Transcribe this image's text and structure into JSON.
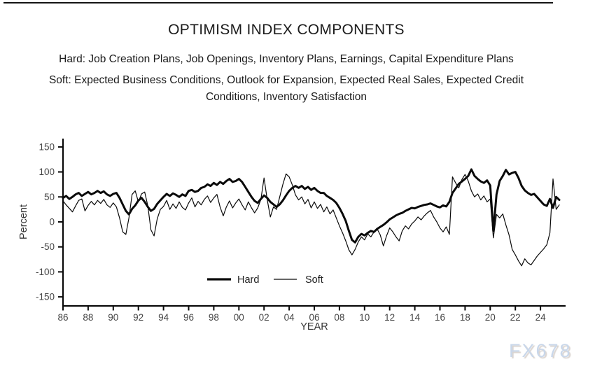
{
  "header": {
    "title": "OPTIMISM INDEX COMPONENTS",
    "hard_line": "Hard: Job Creation Plans, Job Openings, Inventory Plans, Earnings, Capital Expenditure Plans",
    "soft_line": "Soft: Expected Business Conditions, Outlook for Expansion, Expected Real Sales, Expected Credit Conditions, Inventory Satisfaction"
  },
  "watermark": {
    "text": "FX678",
    "color": "#c9d7ea"
  },
  "chart_data": {
    "type": "line",
    "title": "OPTIMISM INDEX COMPONENTS",
    "xlabel": "YEAR",
    "ylabel": "Percent",
    "ylim": [
      -150,
      150
    ],
    "xlim": [
      1985.7,
      2025.9
    ],
    "grid": false,
    "line_color": "#0a0a0a",
    "tick_label_color": "#454545",
    "axis_label_color": "#333333",
    "y_ticks": [
      150,
      100,
      50,
      0,
      -50,
      -100,
      -150
    ],
    "x_tick_years": [
      1986,
      1988,
      1990,
      1992,
      1994,
      1996,
      1998,
      2000,
      2002,
      2004,
      2006,
      2008,
      2010,
      2012,
      2014,
      2016,
      2018,
      2020,
      2022,
      2024
    ],
    "x_tick_labels": [
      "86",
      "88",
      "90",
      "92",
      "94",
      "96",
      "98",
      "00",
      "02",
      "04",
      "06",
      "08",
      "10",
      "12",
      "14",
      "16",
      "18",
      "20",
      "22",
      "24"
    ],
    "legend_position": "inside-bottom-center",
    "legend": [
      {
        "name": "Hard",
        "weight": "thick"
      },
      {
        "name": "Soft",
        "weight": "thin"
      }
    ],
    "x_start": 1986,
    "x_step": 0.25,
    "series": [
      {
        "name": "Hard",
        "weight": "thick",
        "values": [
          48,
          52,
          46,
          50,
          55,
          58,
          52,
          56,
          60,
          55,
          58,
          62,
          58,
          61,
          55,
          52,
          56,
          58,
          48,
          35,
          22,
          15,
          26,
          33,
          43,
          48,
          40,
          30,
          22,
          26,
          36,
          43,
          50,
          56,
          52,
          57,
          54,
          50,
          55,
          52,
          62,
          64,
          60,
          62,
          68,
          70,
          75,
          72,
          78,
          74,
          80,
          76,
          82,
          86,
          80,
          82,
          86,
          80,
          70,
          60,
          50,
          42,
          38,
          46,
          53,
          48,
          40,
          35,
          30,
          35,
          43,
          53,
          62,
          68,
          72,
          68,
          72,
          66,
          70,
          64,
          68,
          62,
          58,
          58,
          52,
          48,
          44,
          38,
          28,
          16,
          2,
          -18,
          -36,
          -41,
          -30,
          -24,
          -27,
          -22,
          -18,
          -20,
          -14,
          -10,
          -6,
          -1,
          5,
          9,
          13,
          16,
          18,
          22,
          25,
          28,
          27,
          30,
          32,
          34,
          35,
          37,
          34,
          31,
          29,
          33,
          31,
          40,
          58,
          67,
          76,
          81,
          86,
          92,
          105,
          92,
          86,
          81,
          78,
          83,
          73,
          -18,
          55,
          82,
          92,
          104,
          95,
          98,
          100,
          88,
          72,
          63,
          58,
          54,
          56,
          49,
          42,
          35,
          32,
          46,
          28,
          50,
          44
        ]
      },
      {
        "name": "Soft",
        "weight": "thin",
        "values": [
          42,
          34,
          27,
          20,
          32,
          43,
          46,
          22,
          33,
          41,
          34,
          43,
          37,
          45,
          34,
          29,
          38,
          30,
          8,
          -20,
          -25,
          8,
          55,
          62,
          40,
          56,
          60,
          32,
          -16,
          -28,
          6,
          25,
          31,
          43,
          25,
          36,
          27,
          40,
          29,
          24,
          38,
          48,
          30,
          41,
          34,
          45,
          52,
          39,
          48,
          55,
          30,
          12,
          30,
          42,
          28,
          38,
          46,
          34,
          24,
          40,
          28,
          18,
          28,
          45,
          88,
          45,
          10,
          30,
          25,
          50,
          75,
          96,
          90,
          74,
          54,
          44,
          50,
          36,
          45,
          28,
          40,
          27,
          35,
          20,
          30,
          16,
          24,
          8,
          -8,
          -22,
          -38,
          -56,
          -66,
          -55,
          -40,
          -30,
          -36,
          -24,
          -30,
          -20,
          -14,
          -26,
          -48,
          -28,
          -12,
          -20,
          -30,
          -38,
          -18,
          -8,
          -14,
          -4,
          2,
          10,
          4,
          12,
          18,
          23,
          10,
          0,
          -12,
          -20,
          -10,
          -25,
          90,
          78,
          68,
          85,
          95,
          82,
          62,
          50,
          56,
          44,
          52,
          40,
          46,
          -32,
          15,
          8,
          16,
          -6,
          -26,
          -55,
          -66,
          -78,
          -88,
          -74,
          -82,
          -86,
          -77,
          -68,
          -61,
          -54,
          -46,
          -22,
          86,
          25,
          34
        ]
      }
    ]
  }
}
